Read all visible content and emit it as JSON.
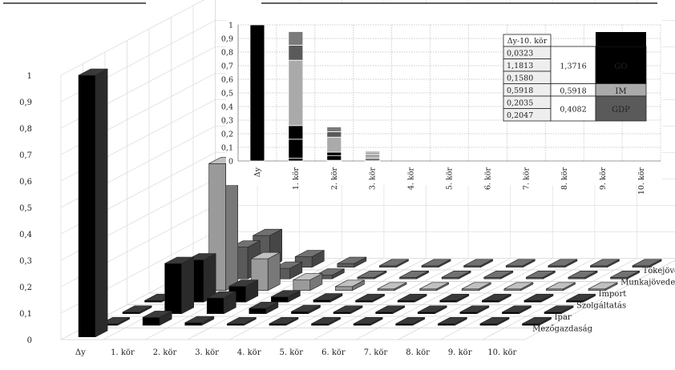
{
  "chart_data": [
    {
      "type": "bar",
      "subtype": "3d-column",
      "categories": [
        "Δy",
        "1. kör",
        "2. kör",
        "3. kör",
        "4. kör",
        "5. kör",
        "6. kör",
        "7. kör",
        "8. kör",
        "9. kör",
        "10. kör"
      ],
      "ylim": [
        0,
        1
      ],
      "yticks": [
        "0",
        "0,1",
        "0,2",
        "0,3",
        "0,4",
        "0,5",
        "0,6",
        "0,7",
        "0,8",
        "0,9",
        "1"
      ],
      "grid": true,
      "series": [
        {
          "name": "Mezőgazdaság",
          "color": "#000000",
          "values": [
            0,
            0.03,
            0.01,
            0.004,
            0.002,
            0.001,
            0.0005,
            0.0003,
            0.0002,
            0.0001,
            0.0001
          ]
        },
        {
          "name": "Ipar",
          "color": "#000000",
          "values": [
            0,
            0.19,
            0.06,
            0.02,
            0.008,
            0.003,
            0.0015,
            0.0008,
            0.0004,
            0.0002,
            0.0001
          ]
        },
        {
          "name": "Szolgáltatás",
          "color": "#000000",
          "values": [
            0,
            0.16,
            0.06,
            0.02,
            0.008,
            0.003,
            0.0015,
            0.0008,
            0.0004,
            0.0002,
            0.0001
          ]
        },
        {
          "name": "Import",
          "color": "#9a9a9a",
          "values": [
            0,
            0.48,
            0.12,
            0.04,
            0.015,
            0.005,
            0.002,
            0.001,
            0.0005,
            0.0003,
            0.0001
          ]
        },
        {
          "name": "Munkajövedelmek",
          "color": "#5a5a5a",
          "values": [
            0,
            0.12,
            0.04,
            0.014,
            0.005,
            0.002,
            0.001,
            0.0005,
            0.0003,
            0.0002,
            0.0001
          ]
        },
        {
          "name": "Tőkejövedelmek",
          "color": "#5a5a5a",
          "values": [
            0,
            0.12,
            0.04,
            0.014,
            0.005,
            0.002,
            0.001,
            0.0005,
            0.0003,
            0.0002,
            0.0001
          ]
        },
        {
          "name": "Δy",
          "color": "#000000",
          "values": [
            1,
            0,
            0,
            0,
            0,
            0,
            0,
            0,
            0,
            0,
            0
          ]
        }
      ],
      "depth_labels": [
        "Tőkejövedelmek",
        "Munkajövedelmek",
        "Import",
        "Szolgáltatás",
        "Ipar",
        "Mezőgazdaság"
      ]
    },
    {
      "type": "bar",
      "subtype": "stacked",
      "categories": [
        "Δy",
        "1. kör",
        "2. kör",
        "3. kör",
        "4. kör",
        "5. kör",
        "6. kör",
        "7. kör",
        "8. kör",
        "9. kör",
        "10. kör"
      ],
      "ylim": [
        0,
        1
      ],
      "yticks": [
        "0",
        "0,1",
        "0,2",
        "0,3",
        "0,4",
        "0,5",
        "0,6",
        "0,7",
        "0,8",
        "0,9",
        "1"
      ],
      "grid": true,
      "bars": [
        [
          {
            "value": 1,
            "color": "#000000"
          }
        ],
        [
          {
            "value": 0.02,
            "color": "#000000"
          },
          {
            "value": 0.14,
            "color": "#000000"
          },
          {
            "value": 0.1,
            "color": "#000000"
          },
          {
            "value": 0.48,
            "color": "#aaaaaa"
          },
          {
            "value": 0.11,
            "color": "#5a5a5a"
          },
          {
            "value": 0.1,
            "color": "#7a7a7a"
          }
        ],
        [
          {
            "value": 0.005,
            "color": "#000000"
          },
          {
            "value": 0.035,
            "color": "#000000"
          },
          {
            "value": 0.025,
            "color": "#000000"
          },
          {
            "value": 0.11,
            "color": "#aaaaaa"
          },
          {
            "value": 0.04,
            "color": "#5a5a5a"
          },
          {
            "value": 0.035,
            "color": "#7a7a7a"
          }
        ],
        [
          {
            "value": 0.002,
            "color": "#000000"
          },
          {
            "value": 0.01,
            "color": "#000000"
          },
          {
            "value": 0.008,
            "color": "#000000"
          },
          {
            "value": 0.03,
            "color": "#aaaaaa"
          },
          {
            "value": 0.01,
            "color": "#5a5a5a"
          },
          {
            "value": 0.01,
            "color": "#7a7a7a"
          }
        ],
        [],
        [],
        [],
        [],
        [],
        [],
        []
      ],
      "table": {
        "header": "Δy-10. kör",
        "values": [
          "0,0323",
          "1,1813",
          "0,1580",
          "0,5918",
          "0,2035",
          "0,2047"
        ],
        "subtotals": [
          "1,3716",
          "0,5918",
          "0,4082"
        ],
        "groups": [
          {
            "label": "GO",
            "color": "#000000"
          },
          {
            "label": "IM",
            "color": "#aaaaaa"
          },
          {
            "label": "GDP",
            "color": "#5a5a5a"
          }
        ]
      }
    }
  ]
}
